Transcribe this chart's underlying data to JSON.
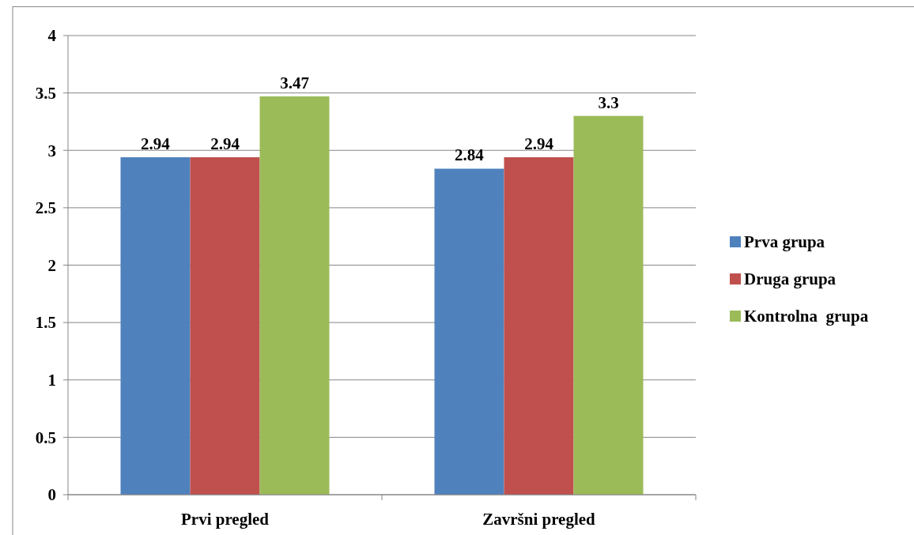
{
  "chart_data": {
    "type": "bar",
    "categories": [
      "Prvi pregled",
      "Završni pregled"
    ],
    "series": [
      {
        "name": "Prva grupa",
        "color": "#4f81bd",
        "values": [
          2.94,
          2.84
        ]
      },
      {
        "name": "Druga grupa",
        "color": "#c0504d",
        "values": [
          2.94,
          2.94
        ]
      },
      {
        "name": "Kontrolna  grupa",
        "color": "#9bbb59",
        "values": [
          3.47,
          3.3
        ]
      }
    ],
    "ylim": [
      0,
      4
    ],
    "yticks": [
      0,
      0.5,
      1,
      1.5,
      2,
      2.5,
      3,
      3.5,
      4
    ],
    "grid": "y",
    "legend": "right",
    "data_labels": true
  }
}
